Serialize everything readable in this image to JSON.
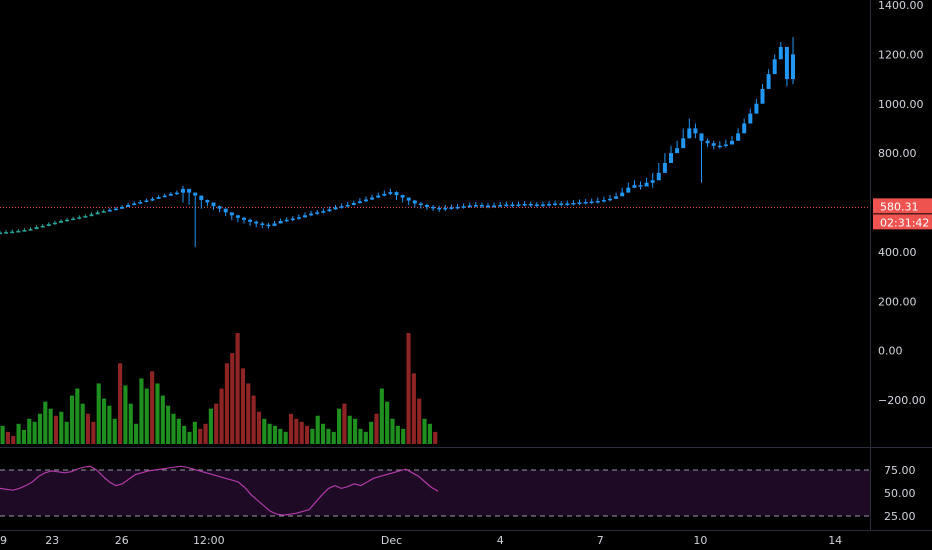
{
  "colors": {
    "background": "#000000",
    "axis_text": "#d1d4dc",
    "separator": "#2a2e39",
    "candle_main": "#2196f3",
    "candle_up": "#26a69a",
    "candle_down": "#ef5350",
    "volume_up": "#1f8f1f",
    "volume_down": "#8e2424",
    "price_line": "#ef5350",
    "price_label_bg": "#ef5350",
    "rsi_line": "#b03aa6",
    "rsi_band": "#1e0a24",
    "rsi_dash": "#9598a1"
  },
  "main_axis": {
    "labels": [
      "1400.00",
      "1200.00",
      "1000.00",
      "800.00",
      "400.00",
      "200.00",
      "0.00",
      "−200.00"
    ],
    "values": [
      1400,
      1200,
      1000,
      800,
      400,
      200,
      0,
      -200
    ],
    "range": [
      -330,
      1410
    ]
  },
  "rsi_axis": {
    "labels": [
      "75.00",
      "50.00",
      "25.00"
    ],
    "values": [
      75,
      50,
      25
    ],
    "range": [
      22,
      82
    ]
  },
  "time_axis": {
    "labels": [
      "9",
      "23",
      "26",
      "12:00",
      "Dec",
      "4",
      "7",
      "10",
      "14"
    ],
    "positions": [
      0.0,
      0.06,
      0.14,
      0.24,
      0.45,
      0.575,
      0.69,
      0.805,
      0.96
    ]
  },
  "price_tag": {
    "value": "580.31",
    "countdown": "02:31:42",
    "level": 580.31
  },
  "chart_data": {
    "type": "candlestick",
    "xlabel": "",
    "ylabel": "",
    "ylim": [
      -330,
      1410
    ],
    "grid": false,
    "price_series": {
      "name": "",
      "closes": [
        478,
        480,
        482,
        485,
        488,
        492,
        500,
        505,
        512,
        518,
        525,
        530,
        535,
        540,
        545,
        552,
        560,
        565,
        570,
        575,
        582,
        590,
        596,
        602,
        608,
        615,
        622,
        628,
        635,
        640,
        655,
        640,
        628,
        610,
        600,
        585,
        575,
        560,
        548,
        538,
        530,
        522,
        515,
        510,
        505,
        515,
        525,
        530,
        535,
        540,
        548,
        555,
        560,
        565,
        572,
        580,
        585,
        590,
        598,
        605,
        612,
        620,
        628,
        635,
        642,
        630,
        620,
        608,
        596,
        590,
        582,
        578,
        575,
        578,
        580,
        582,
        585,
        588,
        590,
        588,
        586,
        588,
        590,
        592,
        590,
        592,
        594,
        592,
        590,
        592,
        594,
        596,
        594,
        596,
        598,
        600,
        602,
        604,
        606,
        610,
        615,
        625,
        640,
        660,
        670,
        665,
        680,
        690,
        720,
        760,
        800,
        820,
        860,
        900,
        880,
        850,
        840,
        830,
        830,
        835,
        850,
        880,
        920,
        960,
        1000,
        1060,
        1120,
        1180,
        1230,
        1100,
        1200
      ],
      "lows": [
        472,
        474,
        476,
        478,
        482,
        486,
        492,
        498,
        504,
        510,
        518,
        522,
        528,
        532,
        538,
        544,
        552,
        558,
        562,
        568,
        574,
        582,
        588,
        594,
        600,
        606,
        614,
        620,
        626,
        630,
        600,
        590,
        420,
        575,
        585,
        570,
        560,
        545,
        528,
        520,
        515,
        505,
        500,
        496,
        494,
        505,
        515,
        520,
        525,
        530,
        538,
        545,
        550,
        555,
        562,
        570,
        575,
        580,
        588,
        595,
        602,
        610,
        618,
        625,
        630,
        610,
        600,
        590,
        580,
        575,
        570,
        565,
        562,
        565,
        570,
        572,
        575,
        578,
        580,
        578,
        576,
        578,
        580,
        582,
        580,
        582,
        584,
        582,
        580,
        582,
        584,
        586,
        584,
        586,
        588,
        590,
        592,
        594,
        596,
        600,
        605,
        615,
        628,
        648,
        658,
        652,
        668,
        660,
        700,
        740,
        785,
        805,
        845,
        860,
        860,
        680,
        825,
        815,
        818,
        822,
        838,
        865,
        905,
        945,
        985,
        1045,
        1100,
        1160,
        1210,
        1070,
        1080
      ],
      "highs": [
        486,
        488,
        490,
        492,
        496,
        500,
        508,
        512,
        520,
        526,
        532,
        538,
        542,
        548,
        552,
        560,
        568,
        572,
        578,
        582,
        590,
        598,
        604,
        610,
        616,
        622,
        630,
        636,
        642,
        648,
        668,
        655,
        640,
        625,
        612,
        598,
        588,
        575,
        560,
        550,
        542,
        535,
        528,
        522,
        518,
        525,
        535,
        540,
        545,
        552,
        560,
        566,
        570,
        576,
        584,
        590,
        596,
        602,
        608,
        618,
        625,
        632,
        640,
        648,
        656,
        645,
        632,
        620,
        610,
        602,
        595,
        590,
        588,
        590,
        592,
        594,
        596,
        600,
        602,
        600,
        598,
        600,
        602,
        604,
        602,
        604,
        606,
        604,
        602,
        604,
        606,
        608,
        606,
        608,
        610,
        612,
        614,
        616,
        620,
        624,
        630,
        640,
        660,
        680,
        690,
        685,
        700,
        720,
        760,
        800,
        830,
        850,
        900,
        940,
        920,
        880,
        860,
        850,
        848,
        855,
        870,
        900,
        940,
        980,
        1020,
        1080,
        1140,
        1200,
        1250,
        1220,
        1270
      ]
    },
    "volume_series": {
      "name": "",
      "values": [
        18,
        12,
        8,
        20,
        14,
        25,
        22,
        30,
        42,
        35,
        28,
        32,
        22,
        48,
        55,
        40,
        30,
        22,
        60,
        45,
        38,
        25,
        80,
        58,
        40,
        20,
        65,
        55,
        72,
        60,
        48,
        38,
        30,
        25,
        18,
        12,
        22,
        15,
        20,
        35,
        40,
        55,
        80,
        90,
        110,
        75,
        60,
        48,
        32,
        25,
        20,
        18,
        15,
        12,
        30,
        25,
        22,
        18,
        15,
        28,
        20,
        15,
        12,
        35,
        40,
        28,
        25,
        15,
        12,
        22,
        30,
        55,
        42,
        25,
        18,
        15,
        110,
        70,
        45,
        25,
        20,
        12
      ],
      "up": [
        true,
        false,
        false,
        true,
        true,
        true,
        true,
        true,
        true,
        true,
        false,
        true,
        true,
        true,
        true,
        true,
        false,
        false,
        true,
        true,
        true,
        true,
        false,
        true,
        true,
        true,
        true,
        true,
        false,
        true,
        true,
        true,
        true,
        true,
        true,
        true,
        true,
        false,
        false,
        true,
        false,
        false,
        false,
        false,
        false,
        false,
        false,
        false,
        false,
        true,
        true,
        true,
        true,
        true,
        false,
        false,
        false,
        false,
        true,
        true,
        true,
        true,
        true,
        true,
        false,
        true,
        true,
        true,
        true,
        true,
        false,
        true,
        true,
        true,
        true,
        true,
        false,
        false,
        false,
        true,
        true,
        false
      ]
    },
    "rsi_series": {
      "name": "",
      "values": [
        55,
        54,
        53,
        55,
        58,
        62,
        68,
        72,
        74,
        73,
        72,
        73,
        76,
        78,
        79,
        75,
        68,
        62,
        58,
        60,
        65,
        70,
        72,
        74,
        75,
        76,
        77,
        78,
        79,
        78,
        76,
        74,
        72,
        70,
        68,
        66,
        64,
        62,
        56,
        48,
        42,
        36,
        30,
        27,
        26,
        27,
        28,
        30,
        32,
        40,
        48,
        55,
        58,
        55,
        57,
        60,
        58,
        62,
        66,
        68,
        70,
        72,
        74,
        76,
        72,
        68,
        62,
        56,
        52
      ]
    }
  }
}
